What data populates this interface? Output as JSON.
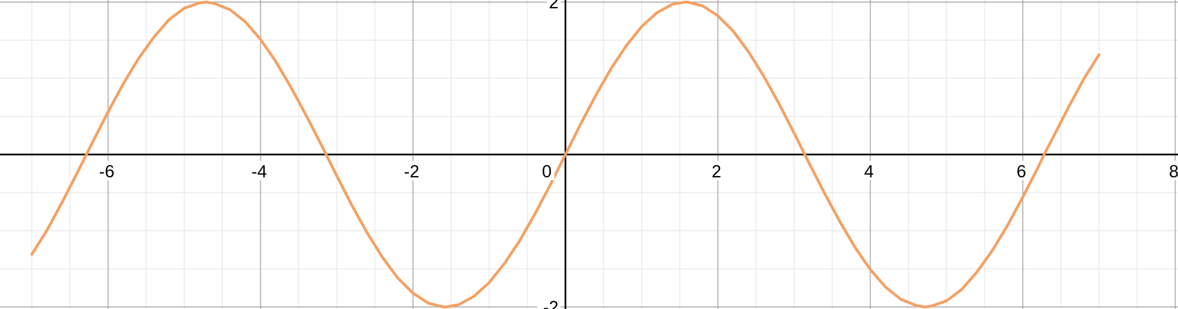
{
  "chart_data": {
    "type": "line",
    "title": "",
    "xlabel": "",
    "ylabel": "",
    "xlim": [
      -7.4,
      8.0
    ],
    "ylim": [
      -2.0,
      2.0
    ],
    "x_ticks": [
      -6,
      -4,
      -2,
      0,
      2,
      4,
      6,
      8
    ],
    "x_tick_labels": [
      "-6",
      "-4",
      "-2",
      "0",
      "2",
      "4",
      "6",
      "8"
    ],
    "y_ticks": [
      2,
      -2
    ],
    "y_tick_labels": [
      "2",
      "-2"
    ],
    "x_minor_step": 0.5,
    "y_minor_step": 0.5,
    "grid": true,
    "series": [
      {
        "color": "#f5a064",
        "x": [
          -7.0,
          -6.8,
          -6.6,
          -6.4,
          -6.2,
          -6.0,
          -5.8,
          -5.6,
          -5.4,
          -5.2,
          -5.0,
          -4.8,
          -4.71,
          -4.6,
          -4.4,
          -4.2,
          -4.0,
          -3.8,
          -3.6,
          -3.4,
          -3.2,
          -3.14,
          -3.0,
          -2.8,
          -2.6,
          -2.4,
          -2.2,
          -2.0,
          -1.8,
          -1.6,
          -1.57,
          -1.4,
          -1.2,
          -1.0,
          -0.8,
          -0.6,
          -0.4,
          -0.2,
          0.0,
          0.2,
          0.4,
          0.6,
          0.8,
          1.0,
          1.2,
          1.4,
          1.57,
          1.6,
          1.8,
          2.0,
          2.2,
          2.4,
          2.6,
          2.8,
          3.0,
          3.14,
          3.2,
          3.4,
          3.6,
          3.8,
          4.0,
          4.2,
          4.4,
          4.6,
          4.71,
          4.8,
          5.0,
          5.2,
          5.4,
          5.6,
          5.8,
          6.0,
          6.2,
          6.28,
          6.4,
          6.6,
          6.8,
          7.0
        ],
        "y": [
          -1.31,
          -0.99,
          -0.62,
          -0.23,
          0.17,
          0.56,
          0.93,
          1.26,
          1.54,
          1.77,
          1.92,
          1.99,
          2.0,
          1.98,
          1.9,
          1.74,
          1.51,
          1.22,
          0.88,
          0.51,
          0.12,
          0.0,
          -0.28,
          -0.67,
          -1.03,
          -1.35,
          -1.62,
          -1.82,
          -1.95,
          -2.0,
          -2.0,
          -1.97,
          -1.86,
          -1.68,
          -1.43,
          -1.13,
          -0.78,
          -0.4,
          0.0,
          0.4,
          0.78,
          1.13,
          1.43,
          1.68,
          1.86,
          1.97,
          2.0,
          2.0,
          1.95,
          1.82,
          1.62,
          1.35,
          1.03,
          0.67,
          0.28,
          0.0,
          -0.12,
          -0.51,
          -0.88,
          -1.22,
          -1.51,
          -1.74,
          -1.9,
          -1.98,
          -2.0,
          -1.99,
          -1.92,
          -1.77,
          -1.54,
          -1.26,
          -0.93,
          -0.56,
          -0.17,
          0.0,
          0.23,
          0.62,
          0.99,
          1.31
        ]
      }
    ]
  }
}
